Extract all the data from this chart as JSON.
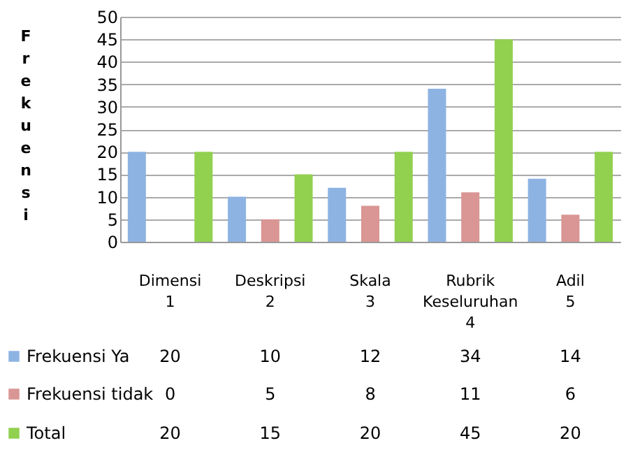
{
  "chart_data": {
    "type": "bar",
    "ylabel": "Frekuensi",
    "categories": [
      "Dimensi 1",
      "Deskripsi 2",
      "Skala 3",
      "Rubrik Keseluruhan 4",
      "Adil 5"
    ],
    "series": [
      {
        "name": "Frekuensi Ya",
        "color": "#8db3e2",
        "values": [
          20,
          10,
          12,
          34,
          14
        ]
      },
      {
        "name": "Frekuensi tidak",
        "color": "#d99694",
        "values": [
          0,
          5,
          8,
          11,
          6
        ]
      },
      {
        "name": "Total",
        "color": "#92d050",
        "values": [
          20,
          15,
          20,
          45,
          20
        ]
      }
    ],
    "ylim": [
      0,
      50
    ],
    "yticks": [
      0,
      5,
      10,
      15,
      20,
      25,
      30,
      35,
      40,
      45,
      50
    ],
    "grid": "y",
    "legend": "bottom",
    "data_labels": true
  }
}
